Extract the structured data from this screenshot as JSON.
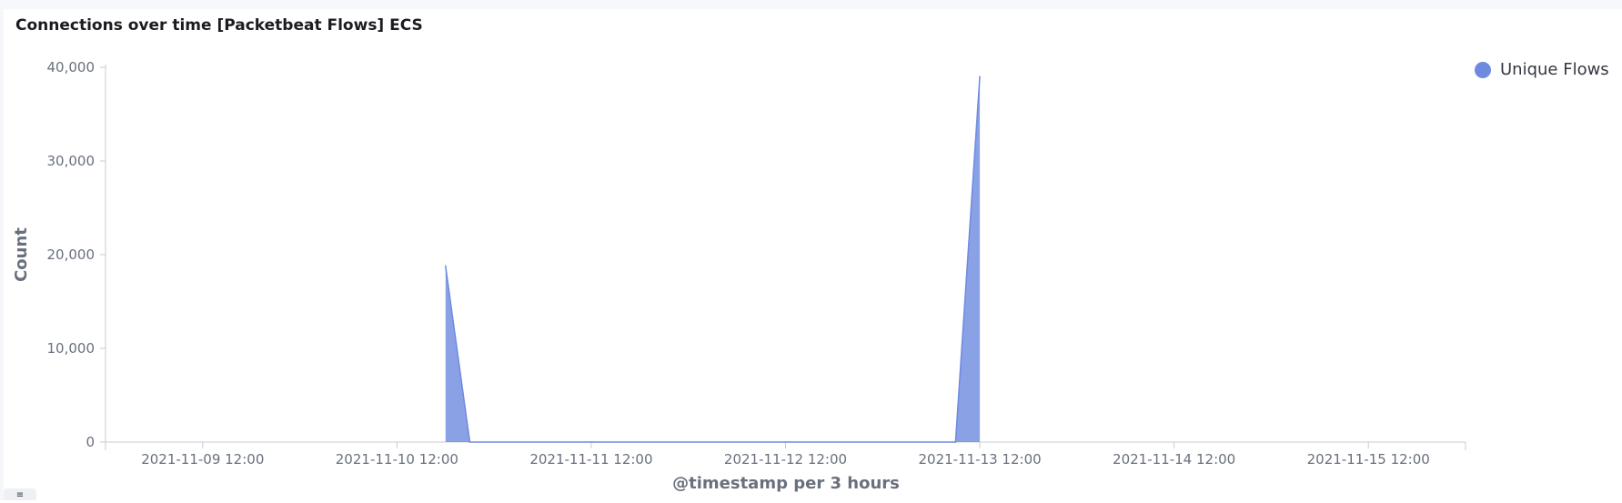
{
  "panel": {
    "title": "Connections over time [Packetbeat Flows] ECS"
  },
  "chart_data": {
    "type": "area",
    "title": "Connections over time [Packetbeat Flows] ECS",
    "xlabel": "@timestamp per 3 hours",
    "ylabel": "Count",
    "ylim": [
      0,
      40000
    ],
    "yticks": [
      0,
      10000,
      20000,
      30000,
      40000
    ],
    "ytick_labels": [
      "0",
      "10,000",
      "20,000",
      "30,000",
      "40,000"
    ],
    "xlim": [
      "2021-11-09 00:00",
      "2021-11-16 00:00"
    ],
    "xticks": [
      "2021-11-09 12:00",
      "2021-11-10 12:00",
      "2021-11-11 12:00",
      "2021-11-12 12:00",
      "2021-11-13 12:00",
      "2021-11-14 12:00",
      "2021-11-15 12:00"
    ],
    "legend_position": "top-right",
    "grid": false,
    "series": [
      {
        "name": "Unique Flows",
        "color": "#6e8ae0",
        "x": [
          "2021-11-10 18:00",
          "2021-11-10 21:00",
          "2021-11-13 09:00",
          "2021-11-13 12:00"
        ],
        "y": [
          18800,
          0,
          0,
          39000
        ]
      }
    ]
  }
}
